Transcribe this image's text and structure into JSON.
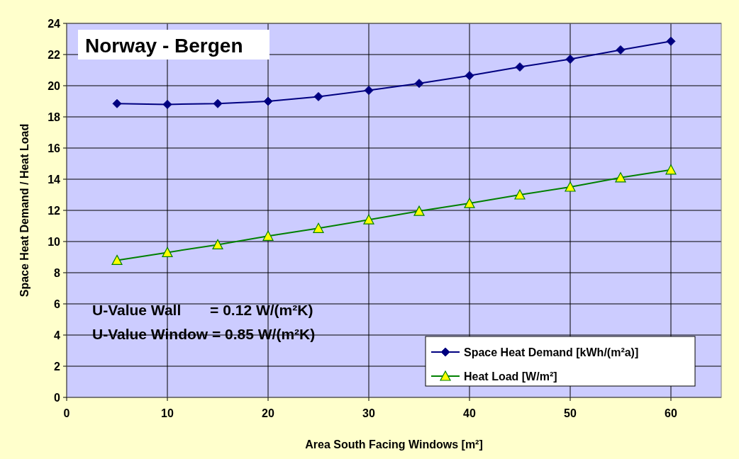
{
  "chart_data": {
    "type": "line",
    "title": "Norway - Bergen",
    "xlabel": "Area South Facing Windows [m²]",
    "ylabel": "Space Heat Demand / Heat Load",
    "x": [
      5,
      10,
      15,
      20,
      25,
      30,
      35,
      40,
      45,
      50,
      55,
      60
    ],
    "series": [
      {
        "name": "Space Heat Demand [kWh/(m²a)]",
        "color": "#000080",
        "marker": "diamond",
        "values": [
          18.85,
          18.8,
          18.85,
          19.0,
          19.3,
          19.7,
          20.15,
          20.65,
          21.2,
          21.7,
          22.3,
          22.85
        ]
      },
      {
        "name": "Heat Load [W/m²]",
        "color": "#008000",
        "marker": "triangle",
        "values": [
          8.8,
          9.3,
          9.8,
          10.35,
          10.85,
          11.4,
          11.95,
          12.45,
          13.0,
          13.5,
          14.1,
          14.6
        ]
      }
    ],
    "annotations": [
      "U-Value Wall       = 0.12 W/(m²K)",
      "U-Value Window = 0.85 W/(m²K)"
    ],
    "xlim": [
      0,
      65
    ],
    "xticks": [
      0,
      10,
      20,
      30,
      40,
      50,
      60
    ],
    "ylim": [
      0,
      24
    ],
    "yticks": [
      0,
      2,
      4,
      6,
      8,
      10,
      12,
      14,
      16,
      18,
      20,
      22,
      24
    ],
    "grid": true,
    "legend": "bottom right"
  }
}
